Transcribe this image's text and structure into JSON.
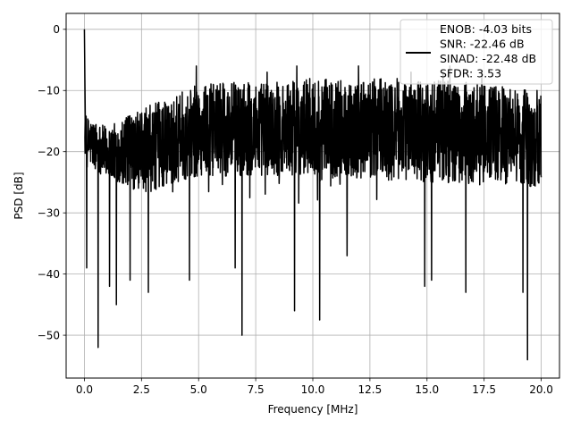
{
  "chart_data": {
    "type": "line",
    "title": "",
    "xlabel": "Frequency [MHz]",
    "ylabel": "PSD [dB]",
    "xlim": [
      -0.8,
      20.8
    ],
    "ylim": [
      -57,
      2.6
    ],
    "xticks": [
      0.0,
      2.5,
      5.0,
      7.5,
      10.0,
      12.5,
      15.0,
      17.5,
      20.0
    ],
    "xtick_labels": [
      "0.0",
      "2.5",
      "5.0",
      "7.5",
      "10.0",
      "12.5",
      "15.0",
      "17.5",
      "20.0"
    ],
    "yticks": [
      0,
      -10,
      -20,
      -30,
      -40,
      -50
    ],
    "ytick_labels": [
      "0",
      "−10",
      "−20",
      "−30",
      "−40",
      "−50"
    ],
    "grid": true,
    "legend_position": "top-right",
    "series": [
      {
        "name": "ENOB: -4.03 bits\nSNR: -22.46 dB\nSINAD: -22.48 dB\nSFDR: 3.53",
        "color": "#000000",
        "description_of_shape": "noise-like PSD spanning 0-20 MHz",
        "peak": {
          "x": 0.0,
          "y": 0.0
        },
        "band_low_trend": [
          [
            0.0,
            -22
          ],
          [
            2.5,
            -27
          ],
          [
            5.0,
            -24
          ],
          [
            10.0,
            -24
          ],
          [
            15.0,
            -25
          ],
          [
            20.0,
            -26
          ]
        ],
        "band_high_trend": [
          [
            0.0,
            -14
          ],
          [
            1.0,
            -16
          ],
          [
            2.5,
            -13
          ],
          [
            5.0,
            -9
          ],
          [
            10.0,
            -8
          ],
          [
            15.0,
            -8
          ],
          [
            20.0,
            -10
          ]
        ],
        "spikes_down": [
          [
            0.1,
            -39
          ],
          [
            0.6,
            -52
          ],
          [
            1.1,
            -42
          ],
          [
            1.4,
            -45
          ],
          [
            2.0,
            -41
          ],
          [
            2.8,
            -43
          ],
          [
            4.6,
            -41
          ],
          [
            6.6,
            -39
          ],
          [
            6.9,
            -50
          ],
          [
            9.2,
            -46
          ],
          [
            10.3,
            -47.5
          ],
          [
            11.5,
            -37
          ],
          [
            14.9,
            -42
          ],
          [
            15.2,
            -41
          ],
          [
            16.7,
            -43
          ],
          [
            19.4,
            -54
          ],
          [
            19.2,
            -43
          ]
        ],
        "spikes_up": [
          [
            4.9,
            -6
          ],
          [
            8.0,
            -7
          ],
          [
            9.3,
            -6
          ],
          [
            12.0,
            -6
          ],
          [
            14.3,
            -7
          ],
          [
            15.7,
            -7
          ],
          [
            16.0,
            -6
          ],
          [
            17.4,
            -7
          ]
        ],
        "legend_label_lines": [
          "ENOB: -4.03 bits",
          "SNR: -22.46 dB",
          "SINAD: -22.48 dB",
          "SFDR: 3.53"
        ]
      }
    ]
  }
}
